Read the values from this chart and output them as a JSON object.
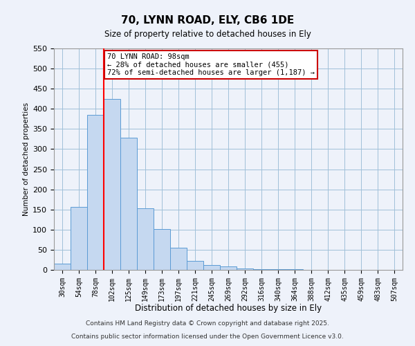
{
  "title": "70, LYNN ROAD, ELY, CB6 1DE",
  "subtitle": "Size of property relative to detached houses in Ely",
  "xlabel": "Distribution of detached houses by size in Ely",
  "ylabel": "Number of detached properties",
  "categories": [
    "30sqm",
    "54sqm",
    "78sqm",
    "102sqm",
    "125sqm",
    "149sqm",
    "173sqm",
    "197sqm",
    "221sqm",
    "245sqm",
    "269sqm",
    "292sqm",
    "316sqm",
    "340sqm",
    "364sqm",
    "388sqm",
    "412sqm",
    "435sqm",
    "459sqm",
    "483sqm",
    "507sqm"
  ],
  "values": [
    15,
    157,
    385,
    425,
    328,
    153,
    102,
    55,
    22,
    12,
    8,
    3,
    2,
    1,
    1,
    0,
    0,
    0,
    0,
    0,
    0
  ],
  "bar_color": "#c5d8f0",
  "bar_edge_color": "#5b9bd5",
  "grid_color": "#a0c0d8",
  "background_color": "#eef2fa",
  "red_line_index": 3,
  "annotation_line1": "70 LYNN ROAD: 98sqm",
  "annotation_line2": "← 28% of detached houses are smaller (455)",
  "annotation_line3": "72% of semi-detached houses are larger (1,187) →",
  "annotation_box_color": "#ffffff",
  "annotation_box_edge": "#cc0000",
  "ylim": [
    0,
    550
  ],
  "yticks": [
    0,
    50,
    100,
    150,
    200,
    250,
    300,
    350,
    400,
    450,
    500,
    550
  ],
  "footnote1": "Contains HM Land Registry data © Crown copyright and database right 2025.",
  "footnote2": "Contains public sector information licensed under the Open Government Licence v3.0."
}
